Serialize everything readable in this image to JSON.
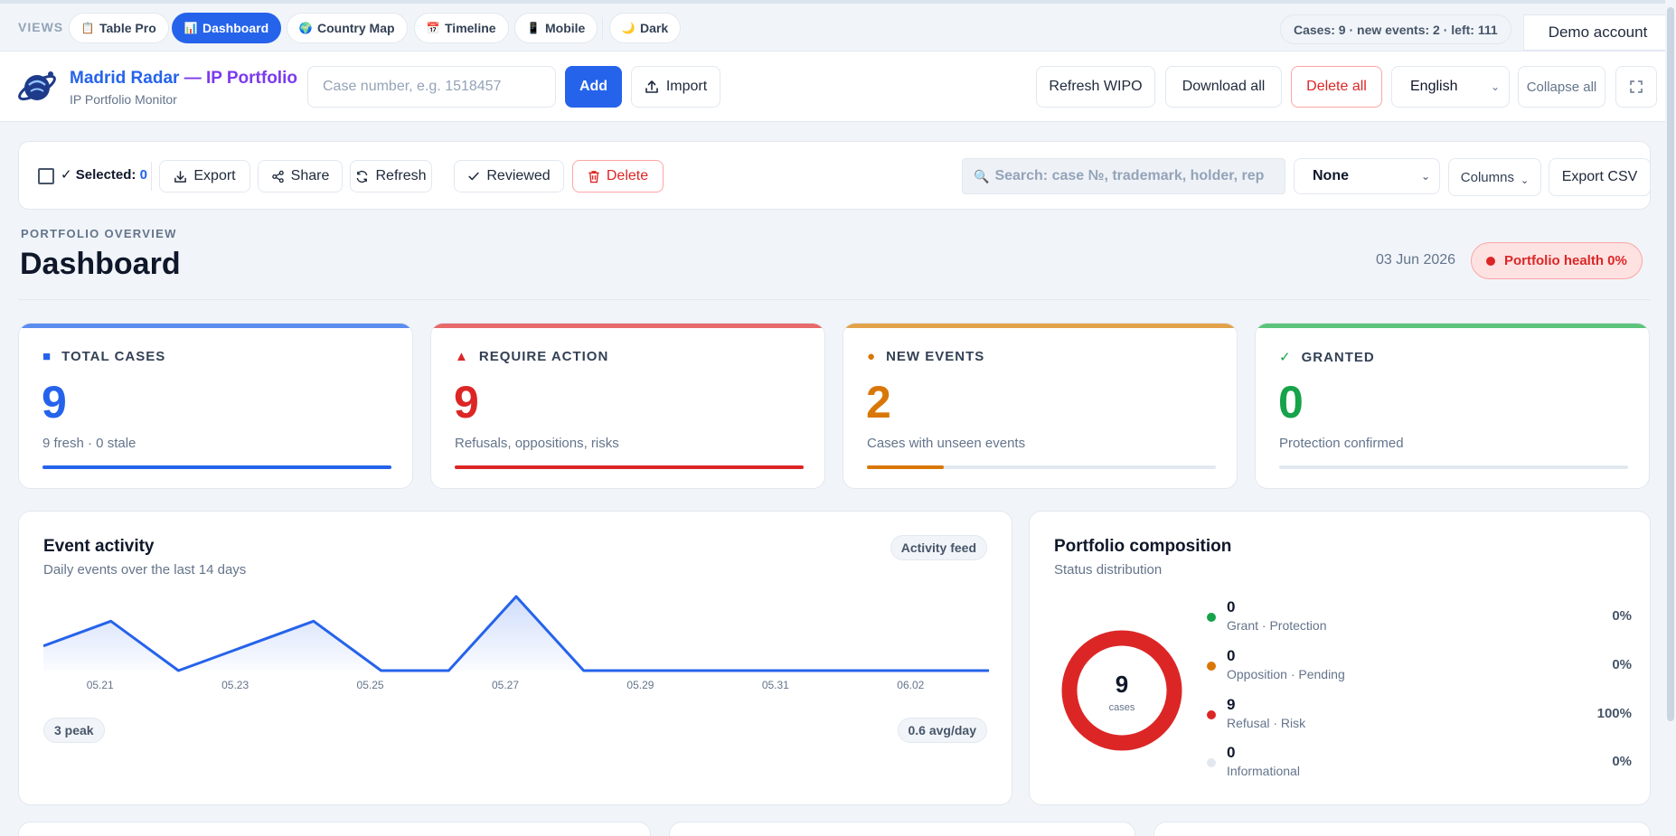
{
  "views": {
    "label": "VIEWS",
    "tabs": [
      {
        "icon": "📋",
        "label": "Table Pro"
      },
      {
        "icon": "📊",
        "label": "Dashboard"
      },
      {
        "icon": "🌍",
        "label": "Country Map"
      },
      {
        "icon": "📅",
        "label": "Timeline"
      },
      {
        "icon": "📱",
        "label": "Mobile"
      },
      {
        "icon": "🌙",
        "label": "Dark"
      }
    ],
    "active_tab": "Dashboard",
    "counts": "Cases: 9 · new events: 2 · left: 111",
    "account": "Demo account"
  },
  "header": {
    "brand_name": "Madrid Radar",
    "brand_dash": " — ",
    "brand_rest": "IP Portfolio",
    "brand_sub": "IP Portfolio Monitor",
    "case_placeholder": "Case number, e.g. 1518457",
    "add_label": "Add",
    "import_label": "Import",
    "refresh_wipo_label": "Refresh WIPO",
    "download_all_label": "Download all",
    "delete_all_label": "Delete all",
    "language": "English",
    "collapse_label": "Collapse all"
  },
  "toolbar": {
    "selected_label": "✓ Selected:",
    "selected_count": "0",
    "export_label": "Export",
    "share_label": "Share",
    "refresh_label": "Refresh",
    "reviewed_label": "Reviewed",
    "delete_label": "Delete",
    "search_placeholder": "Search: case №, trademark, holder, rep",
    "filter_value": "None",
    "columns_label": "Columns",
    "export_csv_label": "Export CSV"
  },
  "overview": {
    "overline": "PORTFOLIO OVERVIEW",
    "title": "Dashboard",
    "date": "03 Jun 2026",
    "health": "Portfolio health 0%"
  },
  "cards": [
    {
      "icon": "■",
      "label": "TOTAL CASES",
      "value": "9",
      "sub": "9 fresh · 0 stale",
      "color": "#2563eb",
      "topcolor": "#5b8def",
      "progress": 1.0
    },
    {
      "icon": "▲",
      "label": "REQUIRE ACTION",
      "value": "9",
      "sub": "Refusals, oppositions, risks",
      "color": "#dc2626",
      "topcolor": "#e86a6a",
      "progress": 1.0
    },
    {
      "icon": "●",
      "label": "NEW EVENTS",
      "value": "2",
      "sub": "Cases with unseen events",
      "color": "#d97706",
      "topcolor": "#e2a24a",
      "progress": 0.22
    },
    {
      "icon": "✓",
      "label": "GRANTED",
      "value": "0",
      "sub": "Protection confirmed",
      "color": "#16a34a",
      "topcolor": "#5cc47c",
      "progress": 0.0
    }
  ],
  "activity": {
    "title": "Event activity",
    "subtitle": "Daily events over the last 14 days",
    "feed_label": "Activity feed",
    "peak_label": "3 peak",
    "avg_label": "0.6 avg/day"
  },
  "chart_data": {
    "type": "area",
    "x": [
      "05.20",
      "05.21",
      "05.22",
      "05.23",
      "05.24",
      "05.25",
      "05.26",
      "05.27",
      "05.28",
      "05.29",
      "05.30",
      "05.31",
      "06.01",
      "06.02",
      "06.03"
    ],
    "y": [
      1,
      2,
      0,
      1,
      2,
      0,
      0,
      3,
      0,
      0,
      0,
      0,
      0,
      0,
      0
    ],
    "tick_labels": [
      "05.21",
      "05.23",
      "05.25",
      "05.27",
      "05.29",
      "05.31",
      "06.02"
    ],
    "ylim": [
      0,
      3
    ],
    "color": "#2563eb",
    "grid": false
  },
  "composition": {
    "title": "Portfolio composition",
    "subtitle": "Status distribution",
    "total": "9",
    "total_label": "cases",
    "items": [
      {
        "value": "0",
        "name": "Grant · Protection",
        "pct": "0%",
        "color": "#16a34a"
      },
      {
        "value": "0",
        "name": "Opposition · Pending",
        "pct": "0%",
        "color": "#d97706"
      },
      {
        "value": "9",
        "name": "Refusal · Risk",
        "pct": "100%",
        "color": "#dc2626"
      },
      {
        "value": "0",
        "name": "Informational",
        "pct": "0%",
        "color": "#e2e8f0"
      }
    ]
  }
}
